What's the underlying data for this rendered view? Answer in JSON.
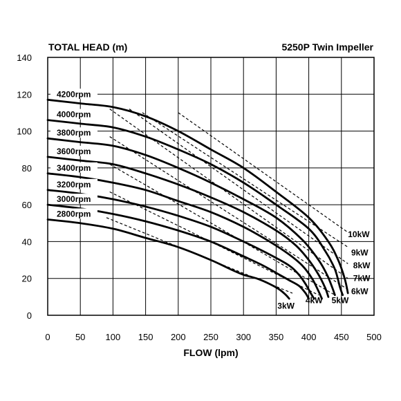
{
  "chart_data": {
    "type": "line",
    "title": "TOTAL HEAD (m)",
    "subtitle": "5250P Twin Impeller",
    "xlabel": "FLOW (lpm)",
    "xlim": [
      0,
      500
    ],
    "ylim": [
      0,
      140
    ],
    "x_ticks": [
      "0",
      "50",
      "100",
      "150",
      "200",
      "250",
      "300",
      "350",
      "400",
      "450",
      "500"
    ],
    "y_ticks": [
      "0",
      "20",
      "40",
      "60",
      "80",
      "100",
      "120",
      "140"
    ],
    "x_tick_values": [
      0,
      50,
      100,
      150,
      200,
      250,
      300,
      350,
      400,
      450,
      500
    ],
    "y_tick_values": [
      0,
      20,
      40,
      60,
      80,
      100,
      120,
      140
    ],
    "grid": true,
    "speed_curves": [
      {
        "name": "4200rpm",
        "points": [
          [
            0,
            117
          ],
          [
            50,
            115
          ],
          [
            100,
            113
          ],
          [
            150,
            108
          ],
          [
            200,
            100
          ],
          [
            250,
            90
          ],
          [
            300,
            80
          ],
          [
            350,
            67
          ],
          [
            400,
            53
          ],
          [
            430,
            40
          ],
          [
            445,
            30
          ],
          [
            455,
            20
          ],
          [
            460,
            12
          ]
        ]
      },
      {
        "name": "4000rpm",
        "points": [
          [
            0,
            106
          ],
          [
            50,
            104
          ],
          [
            100,
            102
          ],
          [
            150,
            97
          ],
          [
            200,
            90
          ],
          [
            250,
            82
          ],
          [
            300,
            72
          ],
          [
            350,
            60
          ],
          [
            400,
            47
          ],
          [
            425,
            35
          ],
          [
            440,
            25
          ],
          [
            448,
            15
          ],
          [
            452,
            11
          ]
        ]
      },
      {
        "name": "3800rpm",
        "points": [
          [
            0,
            96
          ],
          [
            50,
            94
          ],
          [
            100,
            92
          ],
          [
            150,
            87
          ],
          [
            200,
            80
          ],
          [
            250,
            72
          ],
          [
            300,
            63
          ],
          [
            350,
            53
          ],
          [
            390,
            41
          ],
          [
            415,
            30
          ],
          [
            428,
            22
          ],
          [
            436,
            15
          ],
          [
            440,
            11
          ]
        ]
      },
      {
        "name": "3600rpm",
        "points": [
          [
            0,
            86
          ],
          [
            50,
            84
          ],
          [
            100,
            82
          ],
          [
            150,
            77
          ],
          [
            200,
            71
          ],
          [
            250,
            64
          ],
          [
            300,
            56
          ],
          [
            350,
            46
          ],
          [
            380,
            38
          ],
          [
            400,
            30
          ],
          [
            415,
            22
          ],
          [
            425,
            15
          ],
          [
            430,
            10
          ]
        ]
      },
      {
        "name": "3400rpm",
        "points": [
          [
            0,
            77
          ],
          [
            50,
            75
          ],
          [
            100,
            72
          ],
          [
            150,
            68
          ],
          [
            200,
            62
          ],
          [
            250,
            56
          ],
          [
            300,
            48
          ],
          [
            340,
            40
          ],
          [
            370,
            33
          ],
          [
            390,
            27
          ],
          [
            405,
            20
          ],
          [
            415,
            13
          ],
          [
            420,
            9
          ]
        ]
      },
      {
        "name": "3200rpm",
        "points": [
          [
            0,
            68
          ],
          [
            50,
            66
          ],
          [
            100,
            63
          ],
          [
            150,
            59
          ],
          [
            200,
            54
          ],
          [
            250,
            48
          ],
          [
            300,
            40
          ],
          [
            340,
            33
          ],
          [
            370,
            27
          ],
          [
            385,
            22
          ],
          [
            395,
            17
          ],
          [
            403,
            12
          ],
          [
            408,
            9
          ]
        ]
      },
      {
        "name": "3000rpm",
        "points": [
          [
            0,
            60
          ],
          [
            50,
            58
          ],
          [
            100,
            55
          ],
          [
            150,
            51
          ],
          [
            200,
            46
          ],
          [
            250,
            40
          ],
          [
            300,
            32
          ],
          [
            330,
            27
          ],
          [
            355,
            22
          ],
          [
            370,
            19
          ],
          [
            385,
            16
          ],
          [
            395,
            12
          ],
          [
            400,
            9
          ]
        ]
      },
      {
        "name": "2800rpm",
        "points": [
          [
            0,
            52
          ],
          [
            50,
            50
          ],
          [
            100,
            47
          ],
          [
            150,
            42
          ],
          [
            200,
            37
          ],
          [
            250,
            30
          ],
          [
            280,
            25
          ],
          [
            300,
            22
          ],
          [
            320,
            20
          ],
          [
            340,
            17
          ],
          [
            355,
            14
          ],
          [
            365,
            11
          ],
          [
            370,
            9
          ]
        ]
      }
    ],
    "power_lines": [
      {
        "name": "3kW",
        "points": [
          [
            90,
            53
          ],
          [
            375,
            12
          ]
        ]
      },
      {
        "name": "4kW",
        "points": [
          [
            95,
            67
          ],
          [
            415,
            11
          ]
        ]
      },
      {
        "name": "5kW",
        "points": [
          [
            95,
            82
          ],
          [
            440,
            11
          ]
        ]
      },
      {
        "name": "6kW",
        "points": [
          [
            95,
            97
          ],
          [
            460,
            14
          ]
        ]
      },
      {
        "name": "7kW",
        "points": [
          [
            95,
            112
          ],
          [
            460,
            20
          ]
        ]
      },
      {
        "name": "8kW",
        "points": [
          [
            125,
            112
          ],
          [
            460,
            28
          ]
        ]
      },
      {
        "name": "9kW",
        "points": [
          [
            145,
            110
          ],
          [
            460,
            37
          ]
        ]
      },
      {
        "name": "10kW",
        "points": [
          [
            200,
            110
          ],
          [
            460,
            45
          ]
        ]
      }
    ],
    "power_label_positions": {
      "3kW": [
        352,
        5
      ],
      "4kW": [
        395,
        8
      ],
      "5kW": [
        435,
        8
      ],
      "6kW": [
        465,
        13
      ],
      "7kW": [
        468,
        20
      ],
      "8kW": [
        468,
        27
      ],
      "9kW": [
        465,
        34
      ],
      "10kW": [
        460,
        44
      ]
    }
  }
}
